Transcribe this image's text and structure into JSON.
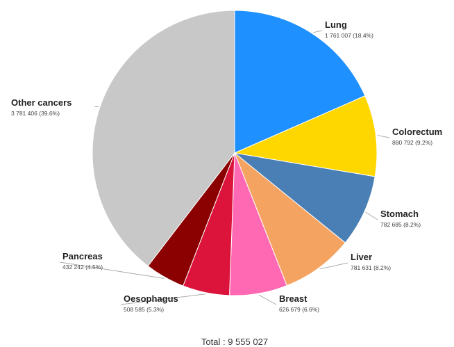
{
  "chart_data": {
    "type": "pie",
    "start_angle_deg": 0,
    "direction": "clockwise",
    "slices": [
      {
        "name": "Lung",
        "value": 1761007,
        "value_label": "1 761 007 (18.4%)",
        "color": "#1e90ff"
      },
      {
        "name": "Colorectum",
        "value": 880792,
        "value_label": "880 792 (9.2%)",
        "color": "#ffd700"
      },
      {
        "name": "Stomach",
        "value": 782685,
        "value_label": "782 685 (8.2%)",
        "color": "#4a7fb5"
      },
      {
        "name": "Liver",
        "value": 781631,
        "value_label": "781 631 (8.2%)",
        "color": "#f4a460"
      },
      {
        "name": "Breast",
        "value": 626679,
        "value_label": "626 679 (6.6%)",
        "color": "#ff69b4"
      },
      {
        "name": "Oesophagus",
        "value": 508585,
        "value_label": "508 585 (5.3%)",
        "color": "#dc143c"
      },
      {
        "name": "Pancreas",
        "value": 432242,
        "value_label": "432 242 (4.5%)",
        "color": "#8b0000"
      },
      {
        "name": "Other cancers",
        "value": 3781406,
        "value_label": "3 781 406 (39.6%)",
        "color": "#c8c8c8"
      }
    ],
    "total_label": "Total : 9 555 027"
  }
}
